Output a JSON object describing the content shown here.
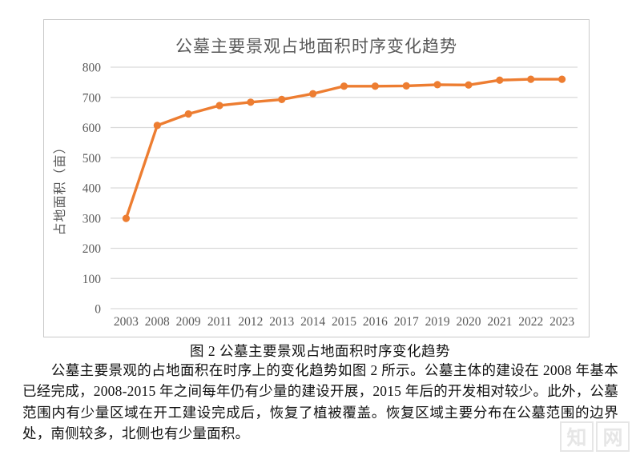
{
  "chart_data": {
    "type": "line",
    "title": "公墓主要景观占地面积时序变化趋势",
    "xlabel": "",
    "ylabel": "占地面积（亩）",
    "categories": [
      "2003",
      "2008",
      "2009",
      "2011",
      "2012",
      "2013",
      "2014",
      "2015",
      "2016",
      "2017",
      "2019",
      "2020",
      "2021",
      "2022",
      "2023"
    ],
    "values": [
      299,
      607,
      645,
      673,
      684,
      693,
      712,
      737,
      737,
      738,
      742,
      741,
      757,
      760,
      760
    ],
    "ylim": [
      0,
      800
    ],
    "ytick_step": 100,
    "grid": true,
    "legend_position": "none",
    "line_color": "#ED7D31",
    "gridline_color": "#D9D9D9",
    "axis_text_color": "#595959",
    "title_color": "#595959"
  },
  "figure": {
    "caption": "图 2  公墓主要景观占地面积时序变化趋势"
  },
  "body": {
    "paragraph": "公墓主要景观的占地面积在时序上的变化趋势如图 2 所示。公墓主体的建设在 2008 年基本已经完成，2008-2015 年之间每年仍有少量的建设开展，2015 年后的开发相对较少。此外，公墓范围内有少量区域在开工建设完成后，恢复了植被覆盖。恢复区域主要分布在公墓范围的边界处，南侧较多，北侧也有少量面积。"
  },
  "watermark": {
    "chars": [
      "知",
      "网"
    ]
  }
}
